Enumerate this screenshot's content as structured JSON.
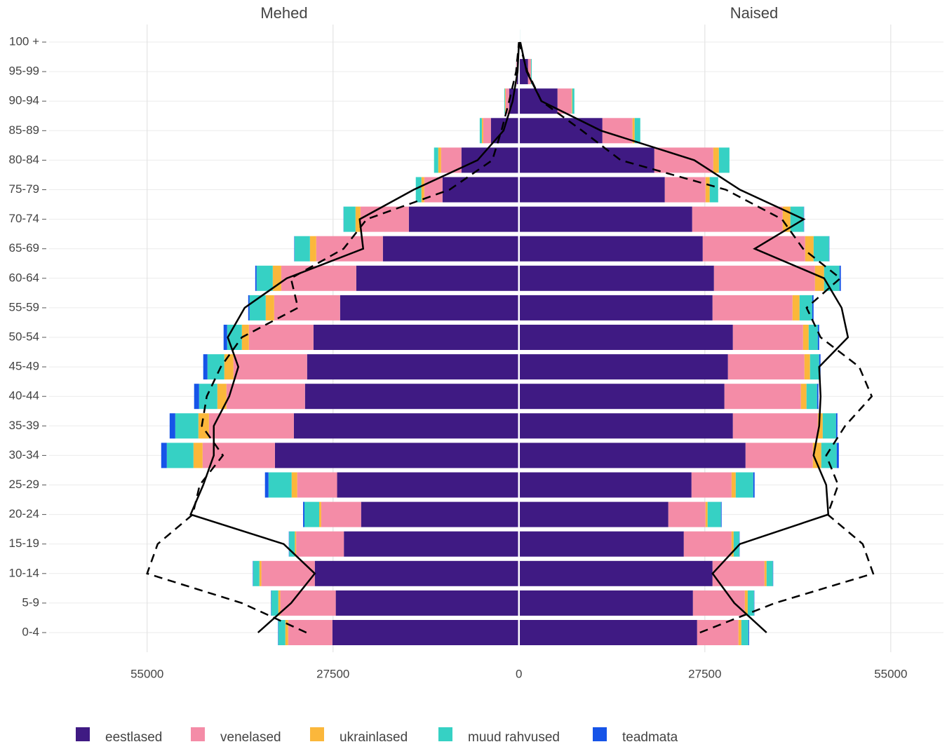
{
  "chart_data": {
    "type": "population-pyramid",
    "panels": [
      "Mehed",
      "Naised"
    ],
    "categories": [
      "0-4",
      "5-9",
      "10-14",
      "15-19",
      "20-24",
      "25-29",
      "30-34",
      "35-39",
      "40-44",
      "45-49",
      "50-54",
      "55-59",
      "60-64",
      "65-69",
      "70-74",
      "75-79",
      "80-84",
      "85-89",
      "90-94",
      "95-99",
      "100 +"
    ],
    "series": [
      {
        "name": "eestlased",
        "color": "#3f1a83",
        "male": [
          27600,
          27100,
          30200,
          25900,
          23350,
          26900,
          36100,
          33300,
          31650,
          31340,
          30400,
          26460,
          24070,
          20130,
          16290,
          11310,
          8510,
          4150,
          1450,
          310,
          30
        ],
        "female": [
          26360,
          25740,
          28640,
          24390,
          22100,
          25530,
          33520,
          31650,
          30400,
          30920,
          31650,
          28640,
          28850,
          27190,
          25630,
          21580,
          20030,
          12350,
          5710,
          1350,
          100
        ]
      },
      {
        "name": "venelased",
        "color": "#f48ca7",
        "male": [
          6540,
          8200,
          7900,
          7060,
          5900,
          5900,
          10700,
          12560,
          11620,
          10900,
          9550,
          9750,
          11100,
          9860,
          7160,
          2700,
          3010,
          1140,
          520,
          100,
          10
        ],
        "female": [
          6120,
          7680,
          7680,
          7060,
          5500,
          5920,
          9960,
          12560,
          11310,
          11310,
          10380,
          11830,
          14940,
          15150,
          13390,
          6020,
          8720,
          4460,
          2080,
          420,
          30
        ]
      },
      {
        "name": "ukrainlased",
        "color": "#fbb73b",
        "male": [
          420,
          300,
          300,
          200,
          300,
          830,
          1350,
          1560,
          1350,
          1350,
          1040,
          1250,
          1250,
          930,
          730,
          420,
          420,
          200,
          100,
          10,
          0
        ],
        "female": [
          420,
          420,
          310,
          310,
          310,
          620,
          1250,
          730,
          830,
          830,
          830,
          1040,
          1350,
          1250,
          1140,
          620,
          830,
          310,
          100,
          20,
          0
        ]
      },
      {
        "name": "muud rahvused",
        "color": "#36d1c4",
        "male": [
          1040,
          1040,
          930,
          830,
          2180,
          3420,
          3940,
          3420,
          2700,
          2490,
          2180,
          2390,
          2390,
          2280,
          1760,
          830,
          620,
          310,
          100,
          20,
          5
        ],
        "female": [
          1040,
          930,
          930,
          830,
          1970,
          2590,
          2280,
          1970,
          1560,
          1350,
          1350,
          1870,
          2280,
          2280,
          1970,
          1250,
          1560,
          830,
          310,
          100,
          10
        ]
      },
      {
        "name": "teadmata",
        "color": "#1654e8",
        "male": [
          50,
          50,
          50,
          50,
          200,
          520,
          830,
          830,
          730,
          620,
          520,
          200,
          200,
          50,
          20,
          0,
          0,
          0,
          0,
          0,
          0
        ],
        "female": [
          100,
          50,
          50,
          50,
          100,
          200,
          310,
          200,
          200,
          200,
          200,
          200,
          200,
          50,
          50,
          0,
          0,
          0,
          0,
          0,
          0
        ]
      }
    ],
    "lines": [
      {
        "color": "#000000",
        "dashed": false,
        "male": [
          38600,
          33700,
          30200,
          34800,
          48570,
          46700,
          45140,
          45140,
          42860,
          41510,
          43070,
          40570,
          34350,
          23040,
          23560,
          15570,
          6120,
          2280,
          930,
          200,
          0
        ],
        "female": [
          36630,
          31860,
          28640,
          32690,
          45760,
          45450,
          43580,
          44410,
          44620,
          44410,
          48670,
          47730,
          45140,
          34870,
          42130,
          32690,
          25940,
          12140,
          3320,
          1140,
          200
        ]
      },
      {
        "color": "#000000",
        "dashed": true,
        "male": [
          31440,
          40990,
          55000,
          53440,
          48250,
          47220,
          43790,
          46910,
          46180,
          44100,
          40990,
          32690,
          33730,
          25940,
          22520,
          10270,
          3940,
          2590,
          1450,
          420,
          0
        ],
        "female": [
          26770,
          37880,
          52400,
          50850,
          45660,
          47220,
          45450,
          48250,
          52190,
          50330,
          44620,
          42550,
          47530,
          42030,
          38910,
          30610,
          15050,
          9340,
          3320,
          1250,
          0
        ]
      }
    ],
    "xlim": [
      -69500,
      62800
    ],
    "xticks": [
      {
        "value": -55000,
        "label": "55000"
      },
      {
        "value": -27500,
        "label": "27500"
      },
      0,
      27500,
      55000
    ],
    "grid": true
  }
}
